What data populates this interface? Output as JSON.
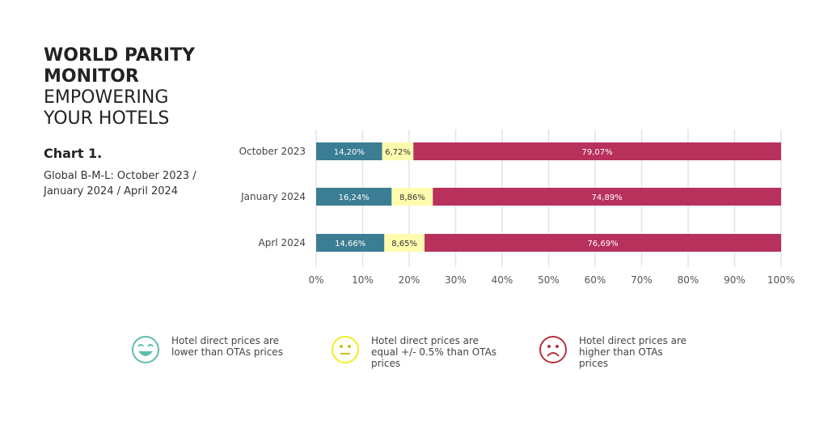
{
  "header": {
    "title_bold_1": "WORLD PARITY",
    "title_bold_2": "MONITOR",
    "title_light_1": "EMPOWERING",
    "title_light_2": "YOUR HOTELS"
  },
  "chart_label": "Chart 1.",
  "subtitle": "Global B-M-L: October 2023 / January 2024 / April 2024",
  "colors": {
    "lower": "#3b7d93",
    "equal": "#fdfcae",
    "higher": "#b8305c"
  },
  "chart_data": {
    "type": "bar",
    "orientation": "horizontal",
    "stacked": true,
    "categories": [
      "October 2023",
      "January 2024",
      "Aprl 2024"
    ],
    "series": [
      {
        "name": "Hotel direct prices are lower than OTAs prices",
        "values": [
          14.2,
          16.24,
          14.66
        ],
        "labels": [
          "14,20%",
          "16,24%",
          "14,66%"
        ]
      },
      {
        "name": "Hotel direct prices are equal +/- 0.5% than OTAs prices",
        "values": [
          6.72,
          8.86,
          8.65
        ],
        "labels": [
          "6,72%",
          "8,86%",
          "8,65%"
        ]
      },
      {
        "name": "Hotel direct prices are higher than OTAs prices",
        "values": [
          79.07,
          74.89,
          76.69
        ],
        "labels": [
          "79,07%",
          "74,89%",
          "76,69%"
        ]
      }
    ],
    "xlim": [
      0,
      100
    ],
    "xticks": [
      "0%",
      "10%",
      "20%",
      "30%",
      "40%",
      "50%",
      "60%",
      "70%",
      "80%",
      "90%",
      "100%"
    ],
    "grid": true,
    "legend_placement": "bottom"
  },
  "legend": [
    {
      "label": "Hotel direct prices are lower than OTAs prices",
      "icon": "smile-icon"
    },
    {
      "label": "Hotel direct prices are equal +/- 0.5% than OTAs prices",
      "icon": "neutral-face-icon"
    },
    {
      "label": "Hotel direct prices are higher than OTAs prices",
      "icon": "sad-face-icon"
    }
  ]
}
